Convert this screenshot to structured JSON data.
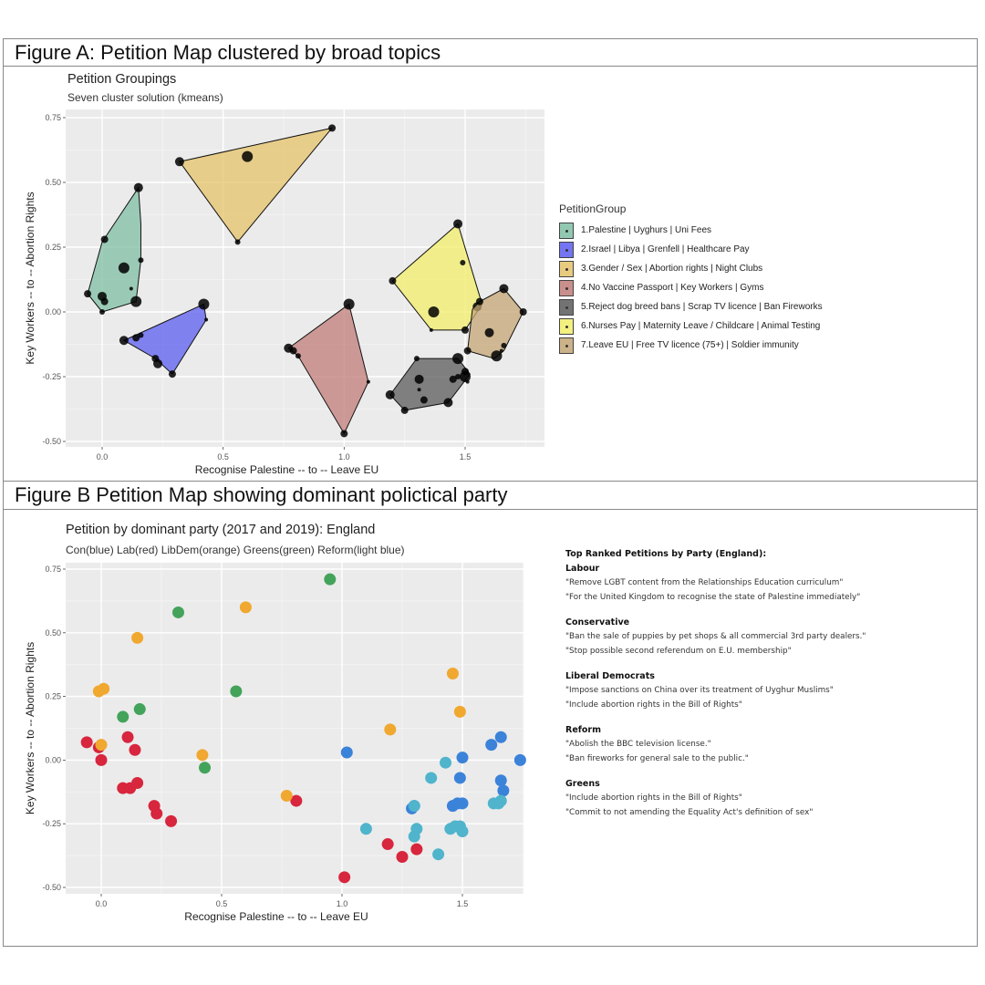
{
  "figure_a": {
    "header": "Figure A:  Petition Map clustered by broad topics"
  },
  "figure_b": {
    "header": "Figure B Petition Map showing dominant polictical party"
  },
  "chart_data": [
    {
      "type": "scatter",
      "title": "Petition Groupings",
      "subtitle": "Seven cluster solution (kmeans)",
      "xlabel": "Recognise Palestine -- to -- Leave EU",
      "ylabel": "Key Workers -- to -- Abortion Rights",
      "xlim": [
        -0.15,
        1.82
      ],
      "ylim": [
        -0.53,
        0.78
      ],
      "xticks": [
        "0.0",
        "0.5",
        "1.0",
        "1.5"
      ],
      "xtick_values": [
        0.0,
        0.5,
        1.0,
        1.5
      ],
      "yticks": [
        "0.75",
        "0.50",
        "0.25",
        "0.00",
        "-0.25",
        "-0.50"
      ],
      "ytick_values": [
        0.75,
        0.5,
        0.25,
        0.0,
        -0.25,
        -0.5
      ],
      "grid": true,
      "legend": {
        "title": "PetitionGroup",
        "position": "right"
      },
      "series": [
        {
          "name": "1.Palestine | Uyghurs | Uni Fees",
          "color": "#7fbfa4",
          "hull": [
            [
              0.15,
              0.48
            ],
            [
              0.0,
              0.27
            ],
            [
              -0.06,
              0.07
            ],
            [
              0.0,
              0.0
            ],
            [
              0.14,
              0.04
            ],
            [
              0.16,
              0.2
            ],
            [
              0.16,
              0.34
            ]
          ],
          "points": [
            [
              0.15,
              0.48
            ],
            [
              0.01,
              0.28
            ],
            [
              0.16,
              0.2
            ],
            [
              0.09,
              0.17
            ],
            [
              0.12,
              0.09
            ],
            [
              -0.06,
              0.07
            ],
            [
              0.0,
              0.06
            ],
            [
              0.01,
              0.04
            ],
            [
              0.0,
              0.0
            ],
            [
              0.14,
              0.04
            ]
          ]
        },
        {
          "name": "2.Israel | Libya | Grenfell | Healthcare Pay",
          "color": "#5b5ef0",
          "hull": [
            [
              0.09,
              -0.11
            ],
            [
              0.42,
              0.03
            ],
            [
              0.43,
              -0.03
            ],
            [
              0.29,
              -0.24
            ],
            [
              0.22,
              -0.18
            ]
          ],
          "points": [
            [
              0.09,
              -0.11
            ],
            [
              0.14,
              -0.1
            ],
            [
              0.16,
              -0.09
            ],
            [
              0.42,
              0.03
            ],
            [
              0.43,
              -0.03
            ],
            [
              0.22,
              -0.18
            ],
            [
              0.23,
              -0.2
            ],
            [
              0.29,
              -0.24
            ]
          ]
        },
        {
          "name": "3.Gender / Sex | Abortion rights | Night Clubs",
          "color": "#e6c36a",
          "hull": [
            [
              0.32,
              0.58
            ],
            [
              0.95,
              0.71
            ],
            [
              0.56,
              0.27
            ]
          ],
          "points": [
            [
              0.32,
              0.58
            ],
            [
              0.95,
              0.71
            ],
            [
              0.56,
              0.27
            ],
            [
              0.6,
              0.6
            ]
          ]
        },
        {
          "name": "4.No Vaccine Passport | Key Workers | Gyms",
          "color": "#c07c78",
          "hull": [
            [
              0.77,
              -0.14
            ],
            [
              1.02,
              0.03
            ],
            [
              1.1,
              -0.27
            ],
            [
              1.0,
              -0.47
            ],
            [
              0.81,
              -0.17
            ]
          ],
          "points": [
            [
              0.77,
              -0.14
            ],
            [
              0.79,
              -0.15
            ],
            [
              0.81,
              -0.17
            ],
            [
              1.02,
              0.03
            ],
            [
              1.1,
              -0.27
            ],
            [
              1.0,
              -0.47
            ]
          ]
        },
        {
          "name": "5.Reject dog breed bans | Scrap TV licence | Ban Fireworks",
          "color": "#5b5b5b",
          "hull": [
            [
              1.19,
              -0.32
            ],
            [
              1.3,
              -0.18
            ],
            [
              1.47,
              -0.18
            ],
            [
              1.52,
              -0.24
            ],
            [
              1.43,
              -0.35
            ],
            [
              1.25,
              -0.38
            ]
          ],
          "points": [
            [
              1.19,
              -0.32
            ],
            [
              1.25,
              -0.38
            ],
            [
              1.3,
              -0.18
            ],
            [
              1.47,
              -0.18
            ],
            [
              1.31,
              -0.3
            ],
            [
              1.33,
              -0.34
            ],
            [
              1.43,
              -0.35
            ],
            [
              1.45,
              -0.26
            ],
            [
              1.47,
              -0.25
            ],
            [
              1.5,
              -0.25
            ],
            [
              1.51,
              -0.27
            ],
            [
              1.5,
              -0.23
            ],
            [
              1.31,
              -0.26
            ]
          ]
        },
        {
          "name": "6.Nurses Pay | Maternity Leave / Childcare | Animal Testing",
          "color": "#f1ee6a",
          "hull": [
            [
              1.2,
              0.12
            ],
            [
              1.47,
              0.34
            ],
            [
              1.57,
              0.03
            ],
            [
              1.5,
              -0.07
            ],
            [
              1.36,
              -0.07
            ]
          ],
          "points": [
            [
              1.47,
              0.34
            ],
            [
              1.2,
              0.12
            ],
            [
              1.49,
              0.19
            ],
            [
              1.37,
              0.0
            ],
            [
              1.36,
              -0.07
            ],
            [
              1.5,
              -0.07
            ],
            [
              1.55,
              0.02
            ]
          ]
        },
        {
          "name": "7.Leave EU | Free TV licence (75+) | Soldier immunity",
          "color": "#c4a574",
          "hull": [
            [
              1.66,
              0.09
            ],
            [
              1.74,
              0.0
            ],
            [
              1.66,
              -0.15
            ],
            [
              1.62,
              -0.18
            ],
            [
              1.51,
              -0.15
            ],
            [
              1.53,
              0.01
            ],
            [
              1.56,
              0.04
            ]
          ],
          "points": [
            [
              1.66,
              0.09
            ],
            [
              1.74,
              0.0
            ],
            [
              1.66,
              -0.13
            ],
            [
              1.63,
              -0.17
            ],
            [
              1.65,
              -0.15
            ],
            [
              1.51,
              -0.15
            ],
            [
              1.6,
              -0.08
            ],
            [
              1.56,
              0.04
            ]
          ]
        }
      ]
    },
    {
      "type": "scatter",
      "title": "Petition by dominant party (2017 and 2019): England",
      "subtitle": "Con(blue) Lab(red) LibDem(orange) Greens(green) Reform(light blue)",
      "xlabel": "Recognise Palestine -- to -- Leave EU",
      "ylabel": "Key Workers -- to -- Abortion Rights",
      "xlim": [
        -0.15,
        1.78
      ],
      "ylim": [
        -0.53,
        0.78
      ],
      "xticks": [
        "0.0",
        "0.5",
        "1.0",
        "1.5"
      ],
      "xtick_values": [
        0.0,
        0.5,
        1.0,
        1.5
      ],
      "yticks": [
        "0.75",
        "0.50",
        "0.25",
        "0.00",
        "-0.25",
        "-0.50"
      ],
      "ytick_values": [
        0.75,
        0.5,
        0.25,
        0.0,
        -0.25,
        -0.5
      ],
      "grid": true,
      "series": [
        {
          "name": "Con",
          "color": "#3b82d9",
          "points": [
            [
              1.02,
              0.03
            ],
            [
              1.5,
              0.01
            ],
            [
              1.62,
              0.06
            ],
            [
              1.66,
              0.09
            ],
            [
              1.74,
              0.0
            ],
            [
              1.49,
              -0.07
            ],
            [
              1.66,
              -0.08
            ],
            [
              1.67,
              -0.12
            ],
            [
              1.46,
              -0.18
            ],
            [
              1.48,
              -0.17
            ],
            [
              1.5,
              -0.17
            ],
            [
              1.3,
              -0.18
            ],
            [
              1.29,
              -0.19
            ]
          ]
        },
        {
          "name": "Lab",
          "color": "#d7263d",
          "points": [
            [
              -0.06,
              0.07
            ],
            [
              -0.01,
              0.05
            ],
            [
              0.0,
              0.0
            ],
            [
              0.11,
              0.09
            ],
            [
              0.14,
              0.04
            ],
            [
              0.09,
              -0.11
            ],
            [
              0.12,
              -0.11
            ],
            [
              0.15,
              -0.09
            ],
            [
              0.22,
              -0.18
            ],
            [
              0.23,
              -0.21
            ],
            [
              0.29,
              -0.24
            ],
            [
              0.81,
              -0.16
            ],
            [
              1.19,
              -0.33
            ],
            [
              1.25,
              -0.38
            ],
            [
              1.31,
              -0.35
            ],
            [
              1.01,
              -0.46
            ]
          ]
        },
        {
          "name": "LibDem",
          "color": "#f0a830",
          "points": [
            [
              0.6,
              0.6
            ],
            [
              0.15,
              0.48
            ],
            [
              -0.01,
              0.27
            ],
            [
              0.01,
              0.28
            ],
            [
              0.0,
              0.06
            ],
            [
              0.42,
              0.02
            ],
            [
              0.77,
              -0.14
            ],
            [
              1.46,
              0.34
            ],
            [
              1.49,
              0.19
            ],
            [
              1.2,
              0.12
            ]
          ]
        },
        {
          "name": "Greens",
          "color": "#43a35a",
          "points": [
            [
              0.95,
              0.71
            ],
            [
              0.32,
              0.58
            ],
            [
              0.56,
              0.27
            ],
            [
              0.16,
              0.2
            ],
            [
              0.09,
              0.17
            ],
            [
              0.43,
              -0.03
            ]
          ]
        },
        {
          "name": "Reform",
          "color": "#4fb4cc",
          "points": [
            [
              1.43,
              -0.01
            ],
            [
              1.37,
              -0.07
            ],
            [
              1.1,
              -0.27
            ],
            [
              1.31,
              -0.27
            ],
            [
              1.3,
              -0.3
            ],
            [
              1.4,
              -0.37
            ],
            [
              1.45,
              -0.27
            ],
            [
              1.47,
              -0.26
            ],
            [
              1.49,
              -0.26
            ],
            [
              1.5,
              -0.28
            ],
            [
              1.63,
              -0.17
            ],
            [
              1.65,
              -0.17
            ],
            [
              1.66,
              -0.16
            ],
            [
              1.3,
              -0.18
            ]
          ]
        }
      ]
    }
  ],
  "top_ranked": {
    "heading": "Top Ranked Petitions by Party (England):",
    "parties": [
      {
        "name": "Labour",
        "petitions": [
          "\"Remove LGBT content from the Relationships Education curriculum\"",
          "\"For the United Kingdom to recognise the state of Palestine immediately\""
        ]
      },
      {
        "name": "Conservative",
        "petitions": [
          "\"Ban the sale of puppies by pet shops & all commercial 3rd party dealers.\"",
          "\"Stop possible second referendum on E.U. membership\""
        ]
      },
      {
        "name": "Liberal Democrats",
        "petitions": [
          "\"Impose sanctions on China over its treatment of Uyghur Muslims\"",
          "\"Include abortion rights in the Bill of Rights\""
        ]
      },
      {
        "name": "Reform",
        "petitions": [
          "\"Abolish the BBC television license.\"",
          "\"Ban fireworks for general sale to the public.\""
        ]
      },
      {
        "name": "Greens",
        "petitions": [
          "\"Include abortion rights in the Bill of Rights\"",
          "\"Commit to not amending the Equality Act's definition of sex\""
        ]
      }
    ]
  }
}
